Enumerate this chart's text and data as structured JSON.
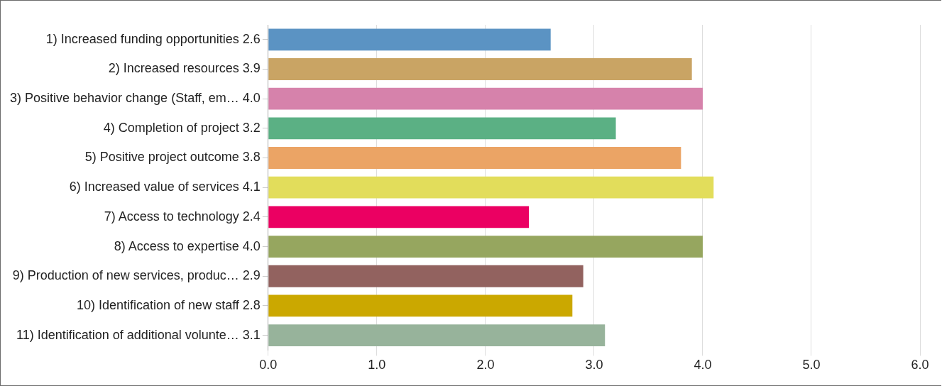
{
  "chart_data": {
    "type": "bar",
    "orientation": "horizontal",
    "categories": [
      "1) Increased funding opportunities 2.6",
      "2) Increased resources 3.9",
      "3) Positive behavior change (Staff, em… 4.0",
      "4) Completion of project 3.2",
      "5) Positive project outcome 3.8",
      "6) Increased value of services 4.1",
      "7) Access to technology 2.4",
      "8) Access to expertise 4.0",
      "9) Production of new services, produc… 2.9",
      "10) Identification of new staff 2.8",
      "11) Identification of additional volunte… 3.1"
    ],
    "values": [
      2.6,
      3.9,
      4.0,
      3.2,
      3.8,
      4.1,
      2.4,
      4.0,
      2.9,
      2.8,
      3.1
    ],
    "colors": [
      "#5b93c3",
      "#c9a464",
      "#d682ab",
      "#5bb084",
      "#eba465",
      "#e2dd5b",
      "#eb0062",
      "#96a65f",
      "#92625f",
      "#cba800",
      "#97b39b"
    ],
    "xlim": [
      0,
      6
    ],
    "xticks": [
      {
        "value": 0,
        "label": "0.0"
      },
      {
        "value": 1,
        "label": "1.0"
      },
      {
        "value": 2,
        "label": "2.0"
      },
      {
        "value": 3,
        "label": "3.0"
      },
      {
        "value": 4,
        "label": "4.0"
      },
      {
        "value": 5,
        "label": "5.0"
      },
      {
        "value": 6,
        "label": "6.0"
      }
    ],
    "grid": "x",
    "legend": false
  }
}
